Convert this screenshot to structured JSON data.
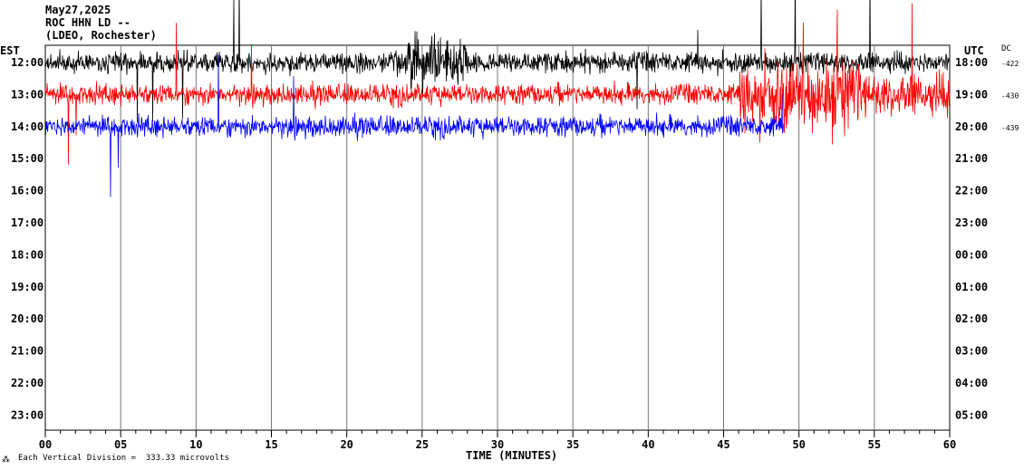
{
  "header": {
    "date": "May27,2025",
    "station": "ROC HHN LD --",
    "network": "(LDEO, Rochester)"
  },
  "left_zone": "EST",
  "right_zone": "UTC",
  "dc_label": "DC",
  "footer": {
    "scale_text": "Each Vertical Division =  333.33 microvolts",
    "corner_mark": "⁂"
  },
  "chart_data": {
    "type": "line",
    "title": "May27,2025 ROC HHN LD -- (LDEO, Rochester)",
    "xlabel": "TIME (MINUTES)",
    "xlim": [
      0,
      60
    ],
    "x_ticks": [
      "00",
      "05",
      "10",
      "15",
      "20",
      "25",
      "30",
      "35",
      "40",
      "45",
      "50",
      "55",
      "60"
    ],
    "rows_left_est": [
      "12:00",
      "13:00",
      "14:00",
      "15:00",
      "16:00",
      "17:00",
      "18:00",
      "19:00",
      "20:00",
      "21:00",
      "22:00",
      "23:00"
    ],
    "rows_right_utc": [
      "18:00",
      "19:00",
      "20:00",
      "21:00",
      "22:00",
      "23:00",
      "00:00",
      "01:00",
      "02:00",
      "03:00",
      "04:00",
      "05:00"
    ],
    "dc_offsets": [
      "-422",
      "-430",
      "-439"
    ],
    "grid": "vertical lines every 5 minutes",
    "series": [
      {
        "color": "#000000",
        "start_min": 0,
        "end_min": 60
      },
      {
        "color": "#ff0000",
        "start_min": 0,
        "end_min": 60
      },
      {
        "color": "#0000ff",
        "start_min": 0,
        "end_min": 49
      }
    ]
  }
}
